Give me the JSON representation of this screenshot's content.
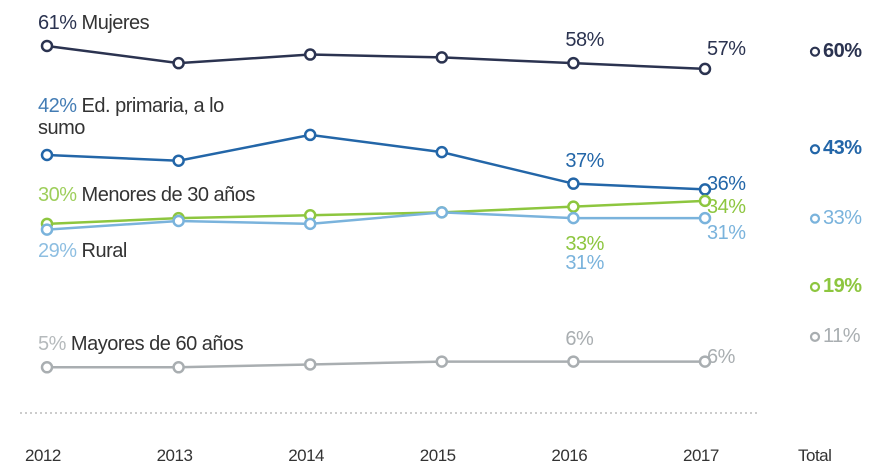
{
  "chart_data": {
    "type": "line",
    "categories": [
      "2012",
      "2013",
      "2014",
      "2015",
      "2016",
      "2017"
    ],
    "total_category": "Total",
    "ylim": [
      0,
      65
    ],
    "series": [
      {
        "name": "Mujeres",
        "color": "#2b3350",
        "values": [
          61,
          58,
          59.5,
          59,
          58,
          57
        ],
        "value_labels": [
          "61%",
          null,
          null,
          null,
          "58%",
          "57%"
        ],
        "total": 60,
        "total_label": "60%"
      },
      {
        "name": "Ed. primaria, a lo sumo",
        "color": "#2366a8",
        "values": [
          42,
          41,
          45.5,
          42.5,
          37,
          36
        ],
        "value_labels": [
          "42%",
          null,
          null,
          null,
          "37%",
          "36%"
        ],
        "total": 43,
        "total_label": "43%"
      },
      {
        "name": "Menores de 30 años",
        "color": "#8dc63f",
        "values": [
          30,
          31,
          31.5,
          32,
          33,
          34
        ],
        "value_labels": [
          "30%",
          null,
          null,
          null,
          "33%",
          "34%"
        ],
        "total": 19,
        "total_label": "19%"
      },
      {
        "name": "Rural",
        "color": "#7ab3dc",
        "values": [
          29,
          30.5,
          30,
          32,
          31,
          31
        ],
        "value_labels": [
          "29%",
          null,
          null,
          null,
          "31%",
          "31%"
        ],
        "total": 33,
        "total_label": "33%"
      },
      {
        "name": "Mayores de 60 años",
        "color": "#a9aeb1",
        "values": [
          5,
          5,
          5.5,
          6,
          6,
          6
        ],
        "value_labels": [
          "5%",
          null,
          null,
          null,
          "6%",
          "6%"
        ],
        "total": 11,
        "total_label": "11%"
      }
    ]
  }
}
